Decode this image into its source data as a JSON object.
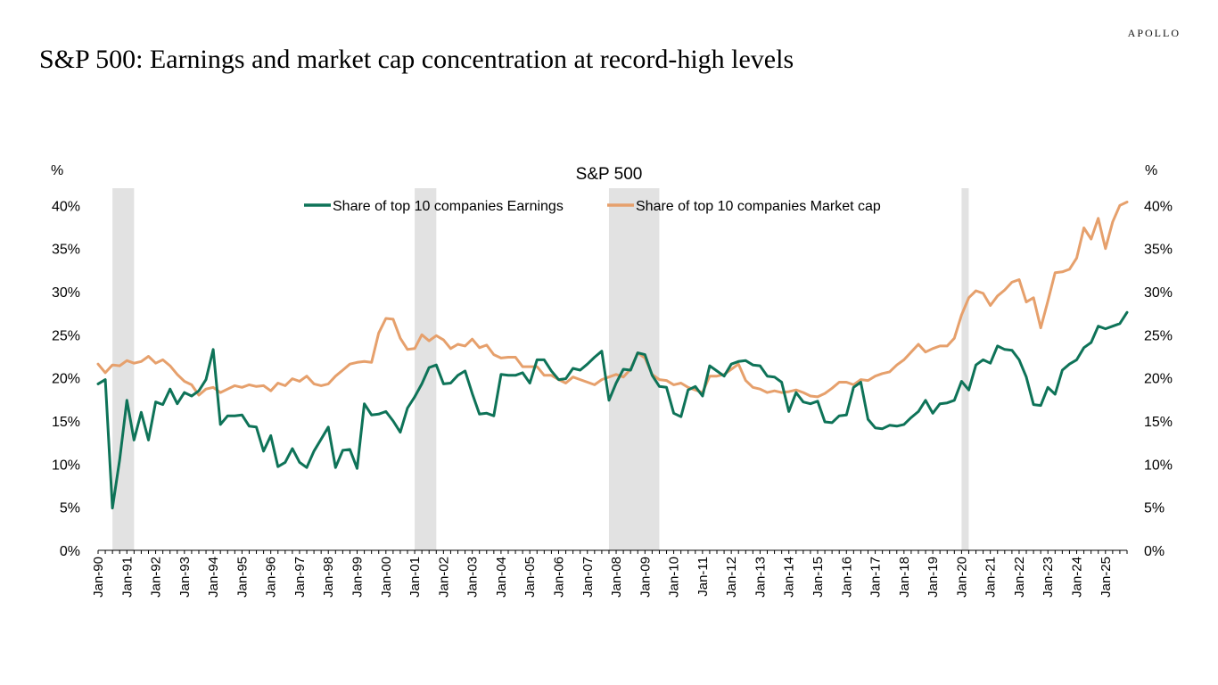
{
  "brand": "APOLLO",
  "page_title": "S&P 500: Earnings and market cap concentration at record-high levels",
  "colors": {
    "earnings": "#0e7358",
    "market_cap": "#e6a06c",
    "recession": "#e2e2e2",
    "axis": "#000000"
  },
  "chart_data": {
    "type": "line",
    "title": "S&P 500",
    "ylabel_left": "%",
    "ylabel_right": "%",
    "ylim": [
      0,
      42
    ],
    "yticks": [
      0,
      5,
      10,
      15,
      20,
      25,
      30,
      35,
      40
    ],
    "ytick_labels": [
      "0%",
      "5%",
      "10%",
      "15%",
      "20%",
      "25%",
      "30%",
      "35%",
      "40%"
    ],
    "x_start": 1990.0,
    "x_end": 2025.75,
    "x_step": 0.25,
    "xtick_labels": [
      "Jan-90",
      "Jan-91",
      "Jan-92",
      "Jan-93",
      "Jan-94",
      "Jan-95",
      "Jan-96",
      "Jan-97",
      "Jan-98",
      "Jan-99",
      "Jan-00",
      "Jan-01",
      "Jan-02",
      "Jan-03",
      "Jan-04",
      "Jan-05",
      "Jan-06",
      "Jan-07",
      "Jan-08",
      "Jan-09",
      "Jan-10",
      "Jan-11",
      "Jan-12",
      "Jan-13",
      "Jan-14",
      "Jan-15",
      "Jan-16",
      "Jan-17",
      "Jan-18",
      "Jan-19",
      "Jan-20",
      "Jan-21",
      "Jan-22",
      "Jan-23",
      "Jan-24",
      "Jan-25"
    ],
    "recessions": [
      [
        1990.5,
        1991.25
      ],
      [
        2001.0,
        2001.75
      ],
      [
        2007.75,
        2009.5
      ],
      [
        2020.0,
        2020.25
      ]
    ],
    "series": [
      {
        "name": "Share of top 10 companies Earnings",
        "values": [
          19.3,
          19.8,
          4.9,
          10.5,
          17.4,
          12.8,
          16.0,
          12.8,
          17.2,
          16.9,
          18.7,
          17.0,
          18.3,
          17.9,
          18.5,
          19.8,
          23.3,
          14.6,
          15.6,
          15.6,
          15.7,
          14.4,
          14.3,
          11.5,
          13.3,
          9.7,
          10.2,
          11.8,
          10.2,
          9.6,
          11.5,
          12.9,
          14.3,
          9.6,
          11.6,
          11.7,
          9.5,
          17.0,
          15.7,
          15.8,
          16.1,
          15.0,
          13.7,
          16.5,
          17.8,
          19.3,
          21.2,
          21.5,
          19.3,
          19.4,
          20.3,
          20.8,
          18.2,
          15.8,
          15.9,
          15.6,
          20.4,
          20.3,
          20.3,
          20.6,
          19.4,
          22.1,
          22.1,
          20.8,
          19.8,
          19.9,
          21.1,
          20.9,
          21.6,
          22.4,
          23.1,
          17.4,
          19.4,
          21.0,
          20.9,
          22.9,
          22.7,
          20.3,
          19.0,
          18.9,
          15.9,
          15.5,
          18.6,
          19.0,
          17.9,
          21.4,
          20.8,
          20.2,
          21.6,
          21.9,
          22.0,
          21.5,
          21.4,
          20.2,
          20.1,
          19.5,
          16.1,
          18.3,
          17.2,
          17.0,
          17.3,
          14.9,
          14.8,
          15.6,
          15.7,
          18.9,
          19.5,
          15.2,
          14.2,
          14.1,
          14.5,
          14.4,
          14.6,
          15.4,
          16.1,
          17.4,
          15.9,
          17.0,
          17.1,
          17.4,
          19.6,
          18.6,
          21.5,
          22.1,
          21.7,
          23.7,
          23.3,
          23.2,
          22.1,
          20.1,
          16.9,
          16.8,
          18.9,
          18.1,
          20.9,
          21.6,
          22.1,
          23.5,
          24.1,
          26.0,
          25.7,
          26.0,
          26.3,
          27.6
        ]
      },
      {
        "name": "Share of top 10 companies Market cap",
        "values": [
          21.6,
          20.6,
          21.5,
          21.4,
          22.0,
          21.7,
          21.9,
          22.5,
          21.7,
          22.1,
          21.4,
          20.4,
          19.6,
          19.2,
          18.0,
          18.7,
          18.9,
          18.3,
          18.7,
          19.1,
          18.9,
          19.2,
          19.0,
          19.1,
          18.5,
          19.4,
          19.1,
          19.9,
          19.6,
          20.2,
          19.3,
          19.1,
          19.3,
          20.2,
          20.9,
          21.6,
          21.8,
          21.9,
          21.8,
          25.2,
          26.9,
          26.8,
          24.6,
          23.3,
          23.4,
          25.0,
          24.3,
          24.9,
          24.4,
          23.4,
          23.9,
          23.7,
          24.5,
          23.5,
          23.8,
          22.7,
          22.3,
          22.4,
          22.4,
          21.3,
          21.3,
          21.3,
          20.3,
          20.3,
          19.8,
          19.4,
          20.1,
          19.8,
          19.5,
          19.2,
          19.8,
          20.1,
          20.4,
          20.1,
          21.0,
          22.9,
          22.3,
          20.4,
          19.8,
          19.7,
          19.2,
          19.4,
          18.9,
          18.6,
          18.3,
          20.2,
          20.2,
          20.4,
          21.0,
          21.6,
          19.7,
          18.9,
          18.7,
          18.3,
          18.5,
          18.3,
          18.4,
          18.6,
          18.3,
          17.9,
          17.8,
          18.2,
          18.8,
          19.5,
          19.5,
          19.2,
          19.8,
          19.7,
          20.2,
          20.5,
          20.7,
          21.5,
          22.1,
          23.0,
          23.9,
          23.0,
          23.4,
          23.7,
          23.7,
          24.6,
          27.3,
          29.3,
          30.1,
          29.8,
          28.4,
          29.5,
          30.2,
          31.1,
          31.4,
          28.8,
          29.3,
          25.8,
          28.9,
          32.2,
          32.3,
          32.6,
          33.9,
          37.4,
          36.1,
          38.5,
          35.0,
          38.1,
          40.0,
          40.4
        ]
      }
    ]
  }
}
